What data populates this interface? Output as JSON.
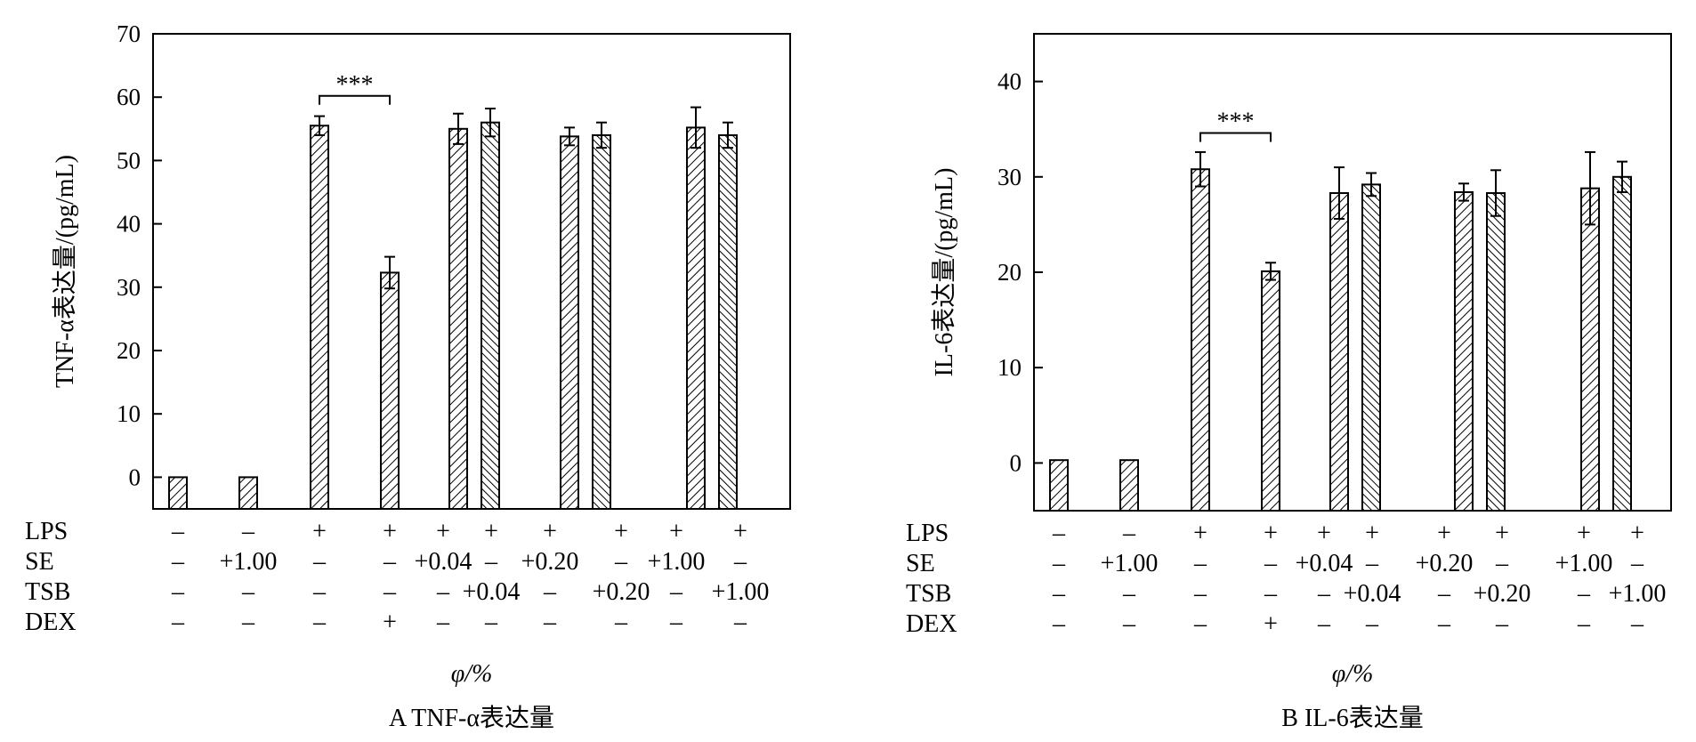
{
  "chart_data": [
    {
      "type": "bar",
      "panel_caption": "A  TNF-α表达量",
      "ylabel": "TNF-α表达量/(pg/mL)",
      "xlabel": "φ/%",
      "ylim": [
        -5,
        70
      ],
      "yticks": [
        0,
        10,
        20,
        30,
        40,
        50,
        60,
        70
      ],
      "pattern_legend": {
        "SE": "hatch-forward",
        "TSB": "hatch-backward"
      },
      "bars": [
        {
          "group": 1,
          "series": "SE",
          "value": 0,
          "error": 0
        },
        {
          "group": 2,
          "series": "SE",
          "value": 0,
          "error": 0
        },
        {
          "group": 3,
          "series": "SE",
          "value": 55.5,
          "error": 1.5
        },
        {
          "group": 4,
          "series": "SE",
          "value": 32.3,
          "error": 2.5
        },
        {
          "group": 5,
          "series": "SE",
          "value": 55.0,
          "error": 2.4
        },
        {
          "group": 5,
          "series": "TSB",
          "value": 56.0,
          "error": 2.2
        },
        {
          "group": 6,
          "series": "SE",
          "value": 53.8,
          "error": 1.4
        },
        {
          "group": 6,
          "series": "TSB",
          "value": 54.0,
          "error": 2.0
        },
        {
          "group": 7,
          "series": "SE",
          "value": 55.2,
          "error": 3.2
        },
        {
          "group": 7,
          "series": "TSB",
          "value": 54.0,
          "error": 2.0
        }
      ],
      "significance": {
        "label": "***",
        "from_bar": 2,
        "to_bar": 3,
        "level": 60.2
      },
      "condition_rows": [
        {
          "label": "LPS",
          "cells": [
            "–",
            "–",
            "+",
            "+",
            "+",
            "+",
            "+",
            "+",
            "+",
            "+"
          ]
        },
        {
          "label": "SE",
          "cells": [
            "–",
            "+1.00",
            "–",
            "–",
            "+0.04",
            "–",
            "+0.20",
            "–",
            "+1.00",
            "–"
          ]
        },
        {
          "label": "TSB",
          "cells": [
            "–",
            "–",
            "–",
            "–",
            "–",
            "+0.04",
            "–",
            "+0.20",
            "–",
            "+1.00"
          ]
        },
        {
          "label": "DEX",
          "cells": [
            "–",
            "–",
            "–",
            "+",
            "–",
            "–",
            "–",
            "–",
            "–",
            "–"
          ]
        }
      ]
    },
    {
      "type": "bar",
      "panel_caption": "B  IL-6表达量",
      "ylabel": "IL-6表达量/(pg/mL)",
      "xlabel": "φ/%",
      "ylim": [
        -5,
        45
      ],
      "yticks": [
        0,
        10,
        20,
        30,
        40
      ],
      "pattern_legend": {
        "SE": "hatch-forward",
        "TSB": "hatch-backward"
      },
      "bars": [
        {
          "group": 1,
          "series": "SE",
          "value": 0.3,
          "error": 0
        },
        {
          "group": 2,
          "series": "SE",
          "value": 0.3,
          "error": 0
        },
        {
          "group": 3,
          "series": "SE",
          "value": 30.8,
          "error": 1.8
        },
        {
          "group": 4,
          "series": "SE",
          "value": 20.1,
          "error": 0.9
        },
        {
          "group": 5,
          "series": "SE",
          "value": 28.3,
          "error": 2.7
        },
        {
          "group": 5,
          "series": "TSB",
          "value": 29.2,
          "error": 1.2
        },
        {
          "group": 6,
          "series": "SE",
          "value": 28.4,
          "error": 0.9
        },
        {
          "group": 6,
          "series": "TSB",
          "value": 28.3,
          "error": 2.4
        },
        {
          "group": 7,
          "series": "SE",
          "value": 28.8,
          "error": 3.8
        },
        {
          "group": 7,
          "series": "TSB",
          "value": 30.0,
          "error": 1.6
        }
      ],
      "significance": {
        "label": "***",
        "from_bar": 2,
        "to_bar": 3,
        "level": 34.6
      },
      "condition_rows": [
        {
          "label": "LPS",
          "cells": [
            "–",
            "–",
            "+",
            "+",
            "+",
            "+",
            "+",
            "+",
            "+",
            "+"
          ]
        },
        {
          "label": "SE",
          "cells": [
            "–",
            "+1.00",
            "–",
            "–",
            "+0.04",
            "–",
            "+0.20",
            "–",
            "+1.00",
            "–"
          ]
        },
        {
          "label": "TSB",
          "cells": [
            "–",
            "–",
            "–",
            "–",
            "–",
            "+0.04",
            "–",
            "+0.20",
            "–",
            "+1.00"
          ]
        },
        {
          "label": "DEX",
          "cells": [
            "–",
            "–",
            "–",
            "+",
            "–",
            "–",
            "–",
            "–",
            "–",
            "–"
          ]
        }
      ]
    }
  ]
}
